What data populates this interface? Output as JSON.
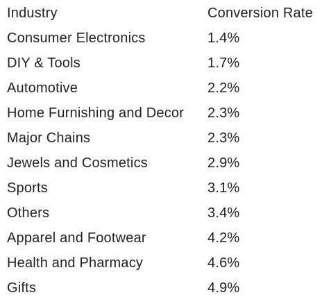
{
  "table": {
    "header": [
      "Industry",
      "Conversion Rate"
    ],
    "rows": [
      [
        "Consumer Electronics",
        "1.4%"
      ],
      [
        "DIY & Tools",
        "1.7%"
      ],
      [
        "Automotive",
        "2.2%"
      ],
      [
        "Home Furnishing and Decor",
        "2.3%"
      ],
      [
        "Major Chains",
        "2.3%"
      ],
      [
        "Jewels and Cosmetics",
        "2.9%"
      ],
      [
        "Sports",
        "3.1%"
      ],
      [
        "Others",
        "3.4%"
      ],
      [
        "Apparel and Footwear",
        "4.2%"
      ],
      [
        "Health and Pharmacy",
        "4.6%"
      ],
      [
        "Gifts",
        "4.9%"
      ]
    ]
  }
}
